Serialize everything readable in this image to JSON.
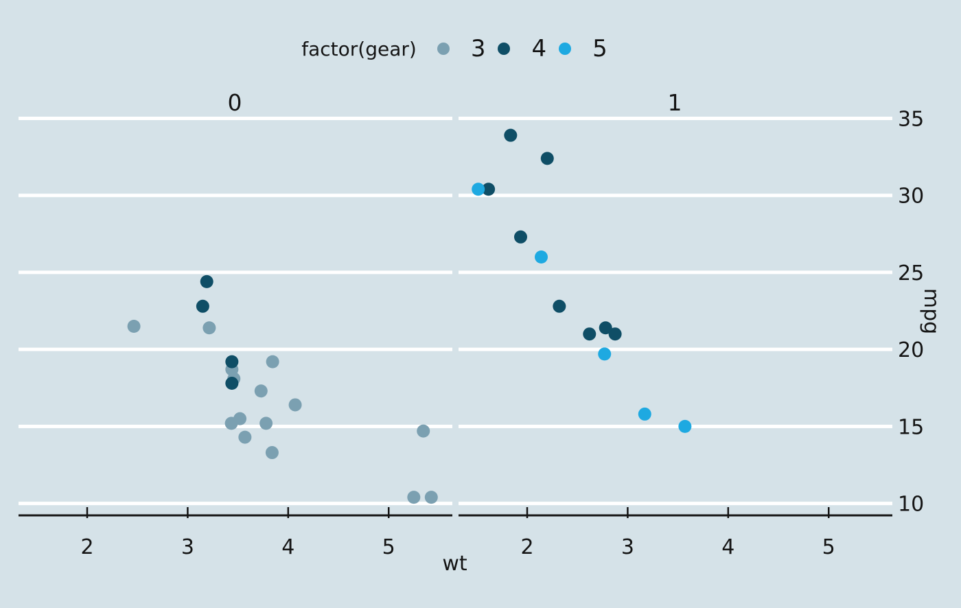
{
  "chart_data": {
    "type": "scatter",
    "title": "",
    "xlabel": "wt",
    "ylabel": "mpg",
    "background_color": "#d5e2e8",
    "gridline_color": "#ffffff",
    "axis_color": "#141414",
    "grid": "horizontal white lines on",
    "legend": {
      "position": "top-center",
      "title": "factor(gear)",
      "entries": [
        {
          "label": "3",
          "color": "#7ba0b1"
        },
        {
          "label": "4",
          "color": "#0f4e66"
        },
        {
          "label": "5",
          "color": "#1ea9e1"
        }
      ]
    },
    "facets": [
      {
        "label": "0"
      },
      {
        "label": "1"
      }
    ],
    "x_ticks": [
      2,
      3,
      4,
      5
    ],
    "y_ticks": [
      10,
      15,
      20,
      25,
      30,
      35
    ],
    "x_domain": [
      1.317,
      5.62
    ],
    "y_domain": [
      9.225,
      35.075
    ],
    "colors_by_gear": {
      "3": "#7ba0b1",
      "4": "#0f4e66",
      "5": "#1ea9e1"
    },
    "points": [
      {
        "facet": 0,
        "wt": 3.215,
        "mpg": 21.4,
        "gear": 3
      },
      {
        "facet": 0,
        "wt": 3.44,
        "mpg": 18.7,
        "gear": 3
      },
      {
        "facet": 0,
        "wt": 3.46,
        "mpg": 18.1,
        "gear": 3
      },
      {
        "facet": 0,
        "wt": 3.57,
        "mpg": 14.3,
        "gear": 3
      },
      {
        "facet": 0,
        "wt": 3.19,
        "mpg": 24.4,
        "gear": 4
      },
      {
        "facet": 0,
        "wt": 3.15,
        "mpg": 22.8,
        "gear": 4
      },
      {
        "facet": 0,
        "wt": 3.44,
        "mpg": 19.2,
        "gear": 4
      },
      {
        "facet": 0,
        "wt": 3.44,
        "mpg": 17.8,
        "gear": 4
      },
      {
        "facet": 0,
        "wt": 4.07,
        "mpg": 16.4,
        "gear": 3
      },
      {
        "facet": 0,
        "wt": 3.73,
        "mpg": 17.3,
        "gear": 3
      },
      {
        "facet": 0,
        "wt": 3.78,
        "mpg": 15.2,
        "gear": 3
      },
      {
        "facet": 0,
        "wt": 5.25,
        "mpg": 10.4,
        "gear": 3
      },
      {
        "facet": 0,
        "wt": 5.424,
        "mpg": 10.4,
        "gear": 3
      },
      {
        "facet": 0,
        "wt": 5.345,
        "mpg": 14.7,
        "gear": 3
      },
      {
        "facet": 0,
        "wt": 2.465,
        "mpg": 21.5,
        "gear": 3
      },
      {
        "facet": 0,
        "wt": 3.52,
        "mpg": 15.5,
        "gear": 3
      },
      {
        "facet": 0,
        "wt": 3.435,
        "mpg": 15.2,
        "gear": 3
      },
      {
        "facet": 0,
        "wt": 3.84,
        "mpg": 13.3,
        "gear": 3
      },
      {
        "facet": 0,
        "wt": 3.845,
        "mpg": 19.2,
        "gear": 3
      },
      {
        "facet": 1,
        "wt": 2.62,
        "mpg": 21.0,
        "gear": 4
      },
      {
        "facet": 1,
        "wt": 2.875,
        "mpg": 21.0,
        "gear": 4
      },
      {
        "facet": 1,
        "wt": 2.32,
        "mpg": 22.8,
        "gear": 4
      },
      {
        "facet": 1,
        "wt": 2.2,
        "mpg": 32.4,
        "gear": 4
      },
      {
        "facet": 1,
        "wt": 1.615,
        "mpg": 30.4,
        "gear": 4
      },
      {
        "facet": 1,
        "wt": 1.835,
        "mpg": 33.9,
        "gear": 4
      },
      {
        "facet": 1,
        "wt": 1.935,
        "mpg": 27.3,
        "gear": 4
      },
      {
        "facet": 1,
        "wt": 2.14,
        "mpg": 26.0,
        "gear": 5
      },
      {
        "facet": 1,
        "wt": 1.513,
        "mpg": 30.4,
        "gear": 5
      },
      {
        "facet": 1,
        "wt": 3.17,
        "mpg": 15.8,
        "gear": 5
      },
      {
        "facet": 1,
        "wt": 2.77,
        "mpg": 19.7,
        "gear": 5
      },
      {
        "facet": 1,
        "wt": 3.57,
        "mpg": 15.0,
        "gear": 5
      },
      {
        "facet": 1,
        "wt": 2.78,
        "mpg": 21.4,
        "gear": 4
      }
    ]
  }
}
